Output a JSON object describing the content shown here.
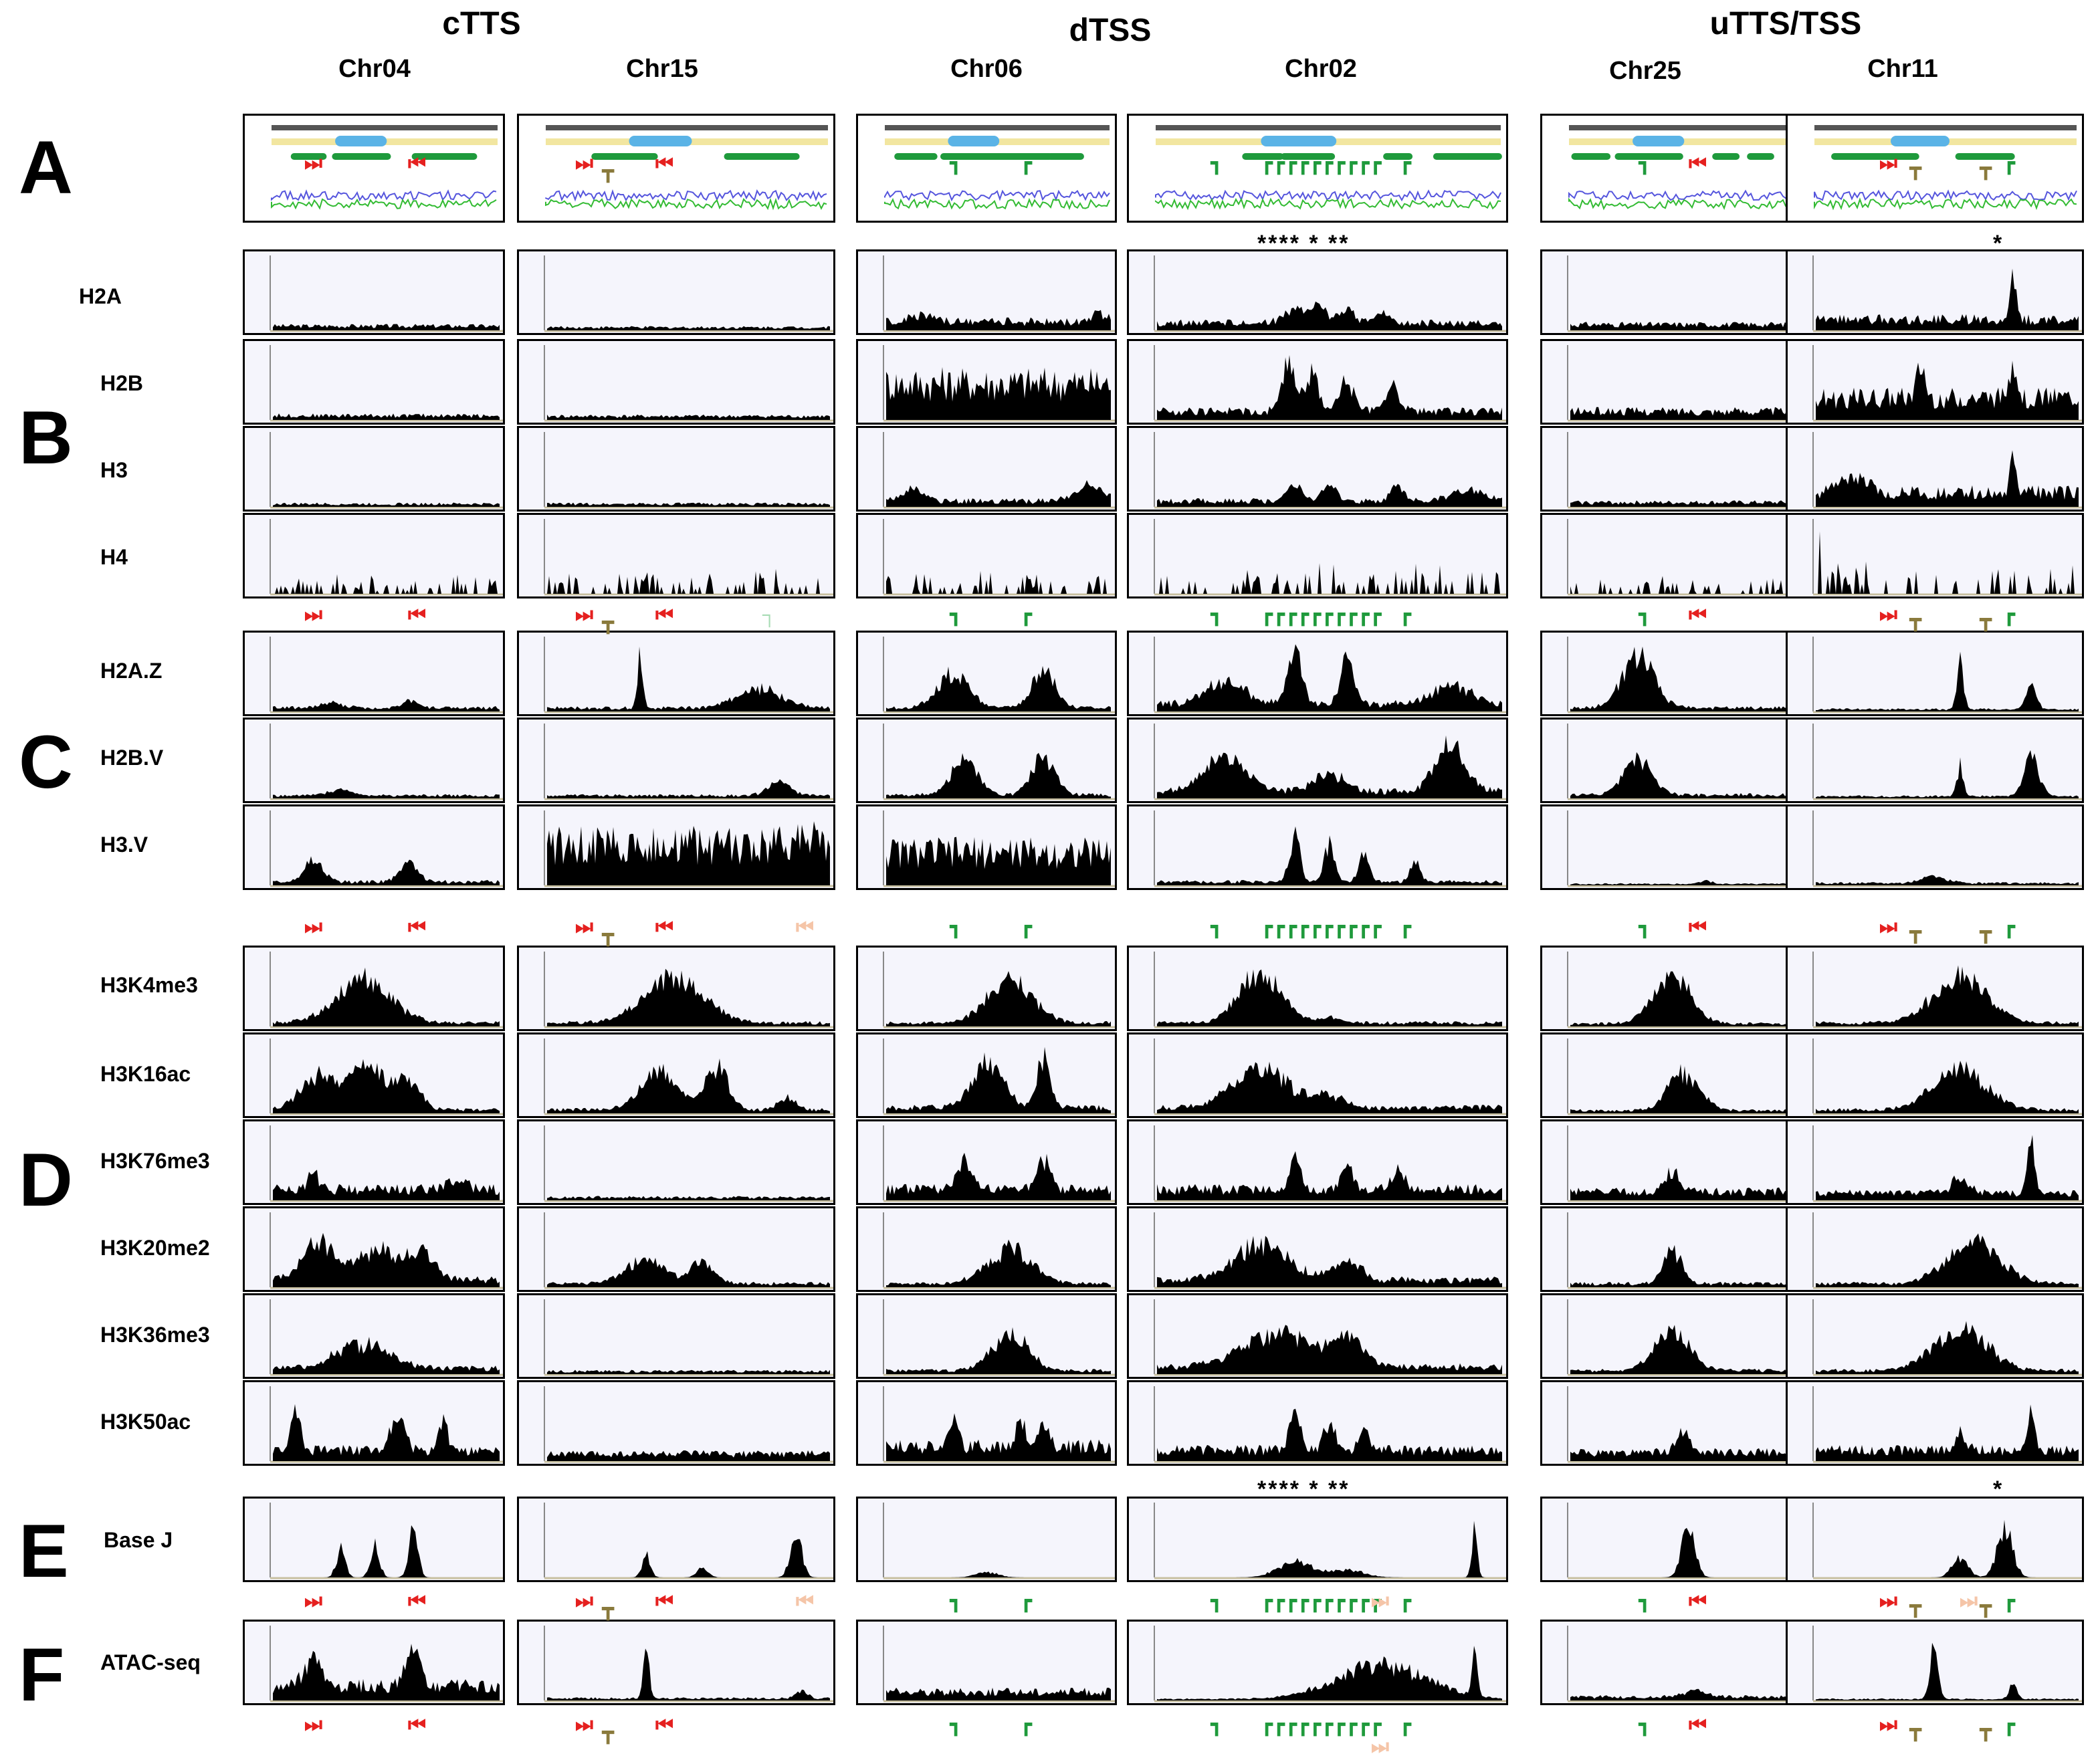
{
  "regions": [
    "cTTS",
    "dTSS",
    "uTTS/TSS"
  ],
  "chromosomes": [
    "Chr04",
    "Chr15",
    "Chr06",
    "Chr02",
    "Chr25",
    "Chr11"
  ],
  "panels": [
    "A",
    "B",
    "C",
    "D",
    "E",
    "F"
  ],
  "tracks": {
    "B": [
      "H2A",
      "H2B",
      "H3",
      "H4"
    ],
    "C": [
      "H2A.Z",
      "H2B.V",
      "H3.V"
    ],
    "D": [
      "H3K4me3",
      "H3K16ac",
      "H3K76me3",
      "H3K20me2",
      "H3K36me3",
      "H3K50ac"
    ],
    "E": [
      "Base J"
    ],
    "F": [
      "ATAC-seq"
    ]
  },
  "annotations": {
    "chr02_stars": "**** * **",
    "chr11_star": "*"
  },
  "colors": {
    "red": "#e5201f",
    "green": "#1f9a3c",
    "olive": "#8a7a3c",
    "peach": "#f5c5a8",
    "light_green": "#a8dcb5",
    "panel_bg": "#f5f5fc"
  }
}
